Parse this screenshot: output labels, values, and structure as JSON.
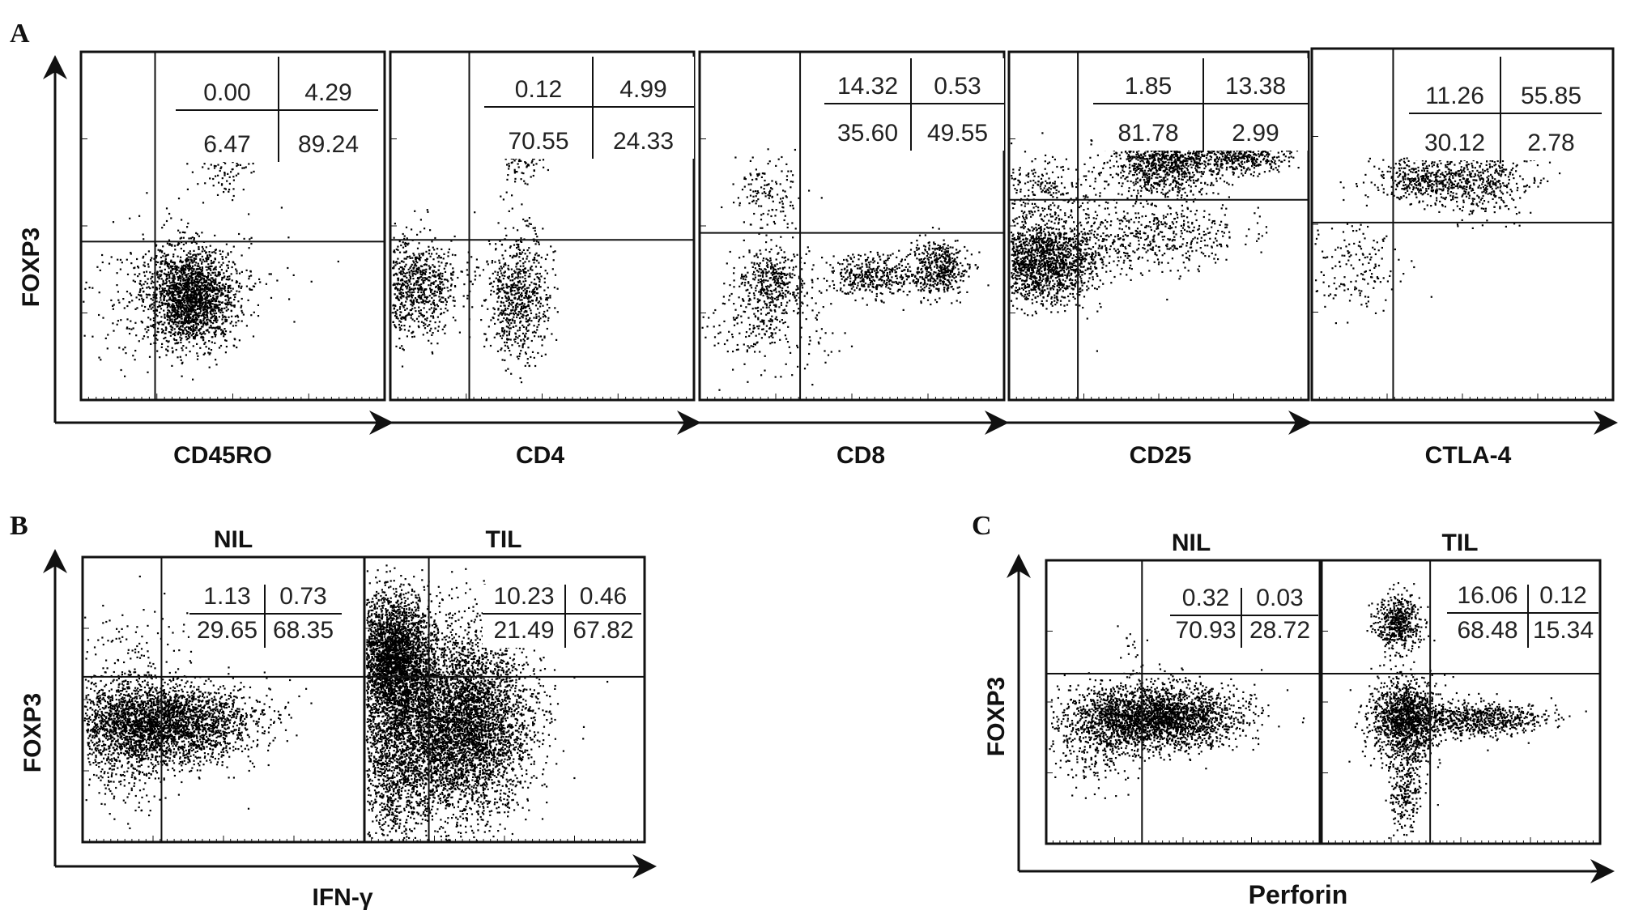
{
  "panel_letters": [
    "A",
    "B",
    "C"
  ],
  "colors": {
    "ink": "#111111",
    "dots": "#000000",
    "background": "#ffffff"
  },
  "chart_data": [
    {
      "type": "scatter",
      "panel": "A",
      "xlabel": "CD45RO",
      "ylabel": "FOXP3",
      "quadrants": {
        "ul": "0.00",
        "ur": "4.29",
        "ll": "6.47",
        "lr": "89.24"
      }
    },
    {
      "type": "scatter",
      "panel": "A",
      "xlabel": "CD4",
      "ylabel": "",
      "quadrants": {
        "ul": "0.12",
        "ur": "4.99",
        "ll": "70.55",
        "lr": "24.33"
      }
    },
    {
      "type": "scatter",
      "panel": "A",
      "xlabel": "CD8",
      "ylabel": "",
      "quadrants": {
        "ul": "14.32",
        "ur": "0.53",
        "ll": "35.60",
        "lr": "49.55"
      }
    },
    {
      "type": "scatter",
      "panel": "A",
      "xlabel": "CD25",
      "ylabel": "",
      "quadrants": {
        "ul": "1.85",
        "ur": "13.38",
        "ll": "81.78",
        "lr": "2.99"
      }
    },
    {
      "type": "scatter",
      "panel": "A",
      "xlabel": "CTLA-4",
      "ylabel": "",
      "quadrants": {
        "ul": "11.26",
        "ur": "55.85",
        "ll": "30.12",
        "lr": "2.78"
      }
    },
    {
      "type": "scatter",
      "panel": "B",
      "title": "NIL",
      "quadrants": {
        "ul": "1.13",
        "ur": "0.73",
        "ll": "29.65",
        "lr": "68.35"
      }
    },
    {
      "type": "scatter",
      "panel": "B",
      "title": "TIL",
      "quadrants": {
        "ul": "10.23",
        "ur": "0.46",
        "ll": "21.49",
        "lr": "67.82"
      }
    },
    {
      "type": "scatter",
      "panel": "C",
      "title": "NIL",
      "quadrants": {
        "ul": "0.32",
        "ur": "0.03",
        "ll": "70.93",
        "lr": "28.72"
      }
    },
    {
      "type": "scatter",
      "panel": "C",
      "title": "TIL",
      "quadrants": {
        "ul": "16.06",
        "ur": "0.12",
        "ll": "68.48",
        "lr": "15.34"
      }
    }
  ],
  "panel_b_axes": {
    "xlabel": "IFN-γ",
    "ylabel": "FOXP3"
  },
  "panel_c_axes": {
    "xlabel": "Perforin",
    "ylabel": "FOXP3"
  }
}
